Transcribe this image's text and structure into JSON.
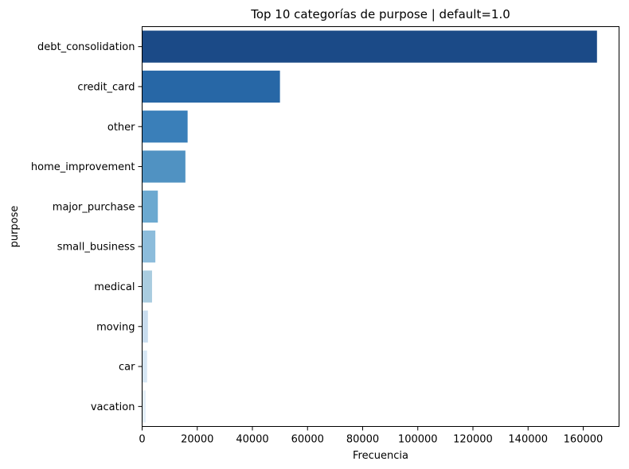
{
  "chart_data": {
    "type": "bar",
    "orientation": "horizontal",
    "title": "Top 10 categorías de purpose | default=1.0",
    "xlabel": "Frecuencia",
    "ylabel": "purpose",
    "categories": [
      "debt_consolidation",
      "credit_card",
      "other",
      "home_improvement",
      "major_purchase",
      "small_business",
      "medical",
      "moving",
      "car",
      "vacation"
    ],
    "values": [
      165000,
      50000,
      16500,
      15700,
      5700,
      4800,
      3600,
      2100,
      1800,
      1300
    ],
    "xlim": [
      0,
      173000
    ],
    "xticks": [
      0,
      20000,
      40000,
      60000,
      80000,
      100000,
      120000,
      140000,
      160000
    ],
    "xtick_labels": [
      "0",
      "20000",
      "40000",
      "60000",
      "80000",
      "100000",
      "120000",
      "140000",
      "160000"
    ],
    "colors": [
      "#1b4a87",
      "#2767a6",
      "#3a7fb9",
      "#5092c2",
      "#6ca9d0",
      "#8cbcdb",
      "#a9ccdf",
      "#c8dcee",
      "#d6e6f4",
      "#e3eef8"
    ],
    "grid": false,
    "legend": "none"
  }
}
